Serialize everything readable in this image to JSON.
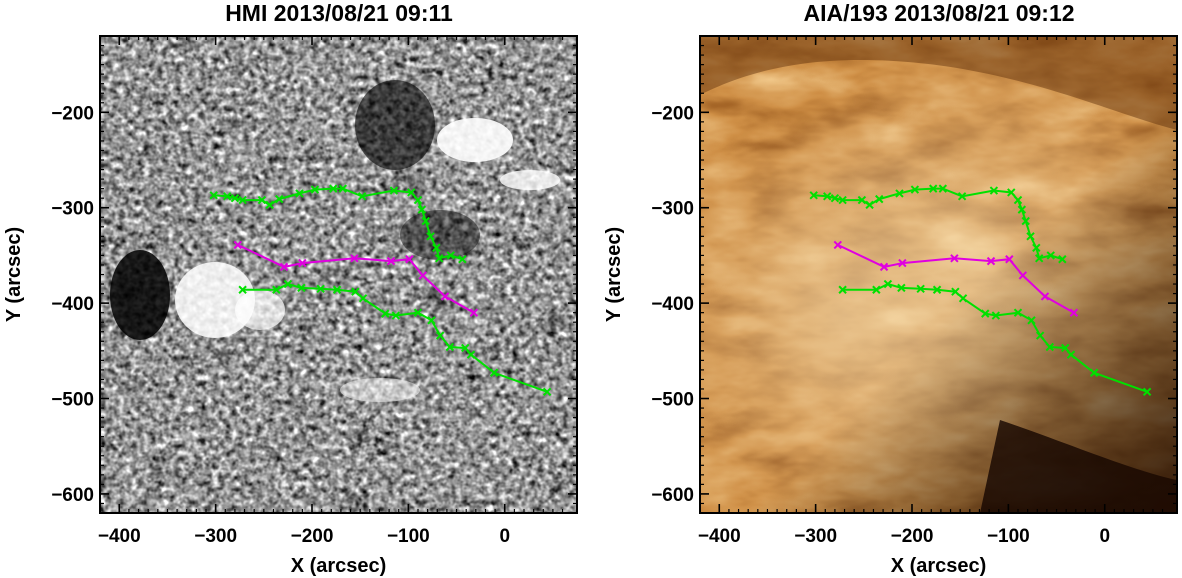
{
  "chart_data": [
    {
      "type": "scatter",
      "panel": "left",
      "title": "HMI 2013/08/21 09:11",
      "xlabel": "X (arcsec)",
      "ylabel": "Y (arcsec)",
      "xlim": [
        -420,
        75
      ],
      "ylim": [
        -620,
        -120
      ],
      "xticks": [
        -400,
        -300,
        -200,
        -100,
        0
      ],
      "yticks": [
        -200,
        -300,
        -400,
        -500,
        -600
      ],
      "background": "gray-magnetogram",
      "series": [
        {
          "color": "#00e000",
          "points": [
            [
              -302,
              -287
            ],
            [
              -288,
              -288
            ],
            [
              -280,
              -290
            ],
            [
              -272,
              -292
            ],
            [
              -252,
              -292
            ],
            [
              -244,
              -297
            ],
            [
              -234,
              -291
            ],
            [
              -213,
              -285
            ],
            [
              -197,
              -281
            ],
            [
              -178,
              -280
            ],
            [
              -168,
              -280
            ],
            [
              -148,
              -288
            ],
            [
              -115,
              -282
            ],
            [
              -97,
              -284
            ],
            [
              -90,
              -292
            ],
            [
              -86,
              -302
            ],
            [
              -82,
              -314
            ],
            [
              -77,
              -330
            ],
            [
              -71,
              -342
            ],
            [
              -68,
              -353
            ],
            [
              -56,
              -350
            ],
            [
              -44,
              -354
            ]
          ]
        },
        {
          "color": "#e000e0",
          "points": [
            [
              -277,
              -339
            ],
            [
              -229,
              -362
            ],
            [
              -210,
              -358
            ],
            [
              -156,
              -353
            ],
            [
              -118,
              -356
            ],
            [
              -99,
              -354
            ],
            [
              -85,
              -371
            ],
            [
              -62,
              -393
            ],
            [
              -32,
              -410
            ]
          ]
        },
        {
          "color": "#00e000",
          "points": [
            [
              -272,
              -386
            ],
            [
              -237,
              -386
            ],
            [
              -225,
              -380
            ],
            [
              -211,
              -384
            ],
            [
              -191,
              -385
            ],
            [
              -174,
              -386
            ],
            [
              -155,
              -388
            ],
            [
              -147,
              -395
            ],
            [
              -124,
              -411
            ],
            [
              -113,
              -413
            ],
            [
              -90,
              -410
            ],
            [
              -76,
              -418
            ],
            [
              -67,
              -434
            ],
            [
              -57,
              -446
            ],
            [
              -41,
              -447
            ],
            [
              -35,
              -454
            ],
            [
              -11,
              -473
            ],
            [
              44,
              -493
            ]
          ]
        }
      ]
    },
    {
      "type": "scatter",
      "panel": "right",
      "title": "AIA/193 2013/08/21 09:12",
      "xlabel": "X (arcsec)",
      "ylabel": "Y (arcsec)",
      "xlim": [
        -420,
        75
      ],
      "ylim": [
        -620,
        -120
      ],
      "xticks": [
        -400,
        -300,
        -200,
        -100,
        0
      ],
      "yticks": [
        -200,
        -300,
        -400,
        -500,
        -600
      ],
      "background": "copper-euv",
      "series": [
        {
          "color": "#00e000",
          "points": [
            [
              -302,
              -287
            ],
            [
              -288,
              -288
            ],
            [
              -280,
              -290
            ],
            [
              -272,
              -292
            ],
            [
              -252,
              -292
            ],
            [
              -244,
              -297
            ],
            [
              -234,
              -291
            ],
            [
              -213,
              -285
            ],
            [
              -197,
              -281
            ],
            [
              -178,
              -280
            ],
            [
              -168,
              -280
            ],
            [
              -148,
              -288
            ],
            [
              -115,
              -282
            ],
            [
              -97,
              -284
            ],
            [
              -90,
              -292
            ],
            [
              -86,
              -302
            ],
            [
              -82,
              -314
            ],
            [
              -77,
              -330
            ],
            [
              -71,
              -342
            ],
            [
              -68,
              -353
            ],
            [
              -56,
              -350
            ],
            [
              -44,
              -354
            ]
          ]
        },
        {
          "color": "#e000e0",
          "points": [
            [
              -277,
              -339
            ],
            [
              -229,
              -362
            ],
            [
              -210,
              -358
            ],
            [
              -156,
              -353
            ],
            [
              -118,
              -356
            ],
            [
              -99,
              -354
            ],
            [
              -85,
              -371
            ],
            [
              -62,
              -393
            ],
            [
              -32,
              -410
            ]
          ]
        },
        {
          "color": "#00e000",
          "points": [
            [
              -272,
              -386
            ],
            [
              -237,
              -386
            ],
            [
              -225,
              -380
            ],
            [
              -211,
              -384
            ],
            [
              -191,
              -385
            ],
            [
              -174,
              -386
            ],
            [
              -155,
              -388
            ],
            [
              -147,
              -395
            ],
            [
              -124,
              -411
            ],
            [
              -113,
              -413
            ],
            [
              -90,
              -410
            ],
            [
              -76,
              -418
            ],
            [
              -67,
              -434
            ],
            [
              -57,
              -446
            ],
            [
              -41,
              -447
            ],
            [
              -35,
              -454
            ],
            [
              -11,
              -473
            ],
            [
              44,
              -493
            ]
          ]
        }
      ]
    }
  ]
}
